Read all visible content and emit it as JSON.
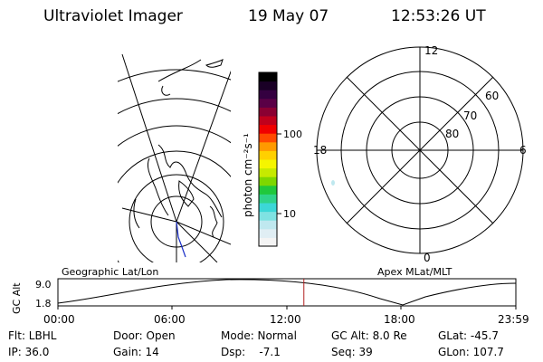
{
  "header": {
    "instrument": "Ultraviolet Imager",
    "date": "19 May 07",
    "time": "12:53:26 UT"
  },
  "colorbar": {
    "label": "photon cm⁻²s⁻¹",
    "tick_100": "100",
    "tick_10": "10",
    "colors": [
      "#f4f4f4",
      "#e0eef4",
      "#bfe8ef",
      "#7fe2e2",
      "#3cd7d7",
      "#2fd38a",
      "#20c83c",
      "#7ed700",
      "#c6ea00",
      "#f5f500",
      "#ffd000",
      "#ff9a00",
      "#ff4a00",
      "#f00000",
      "#c0001c",
      "#8a0032",
      "#5a0046",
      "#340040",
      "#1a0026",
      "#000000"
    ]
  },
  "polar_plot": {
    "mlt_12": "12",
    "mlt_18": "18",
    "mlt_6": "6",
    "mlt_0": "0",
    "lat_60": "60",
    "lat_70": "70",
    "lat_80": "80"
  },
  "map_labels": {
    "left": "Geographic Lat/Lon",
    "right": "Apex MLat/MLT"
  },
  "altitude_plot": {
    "ylabel": "GC Alt",
    "ytick_top": "9.0",
    "ytick_bottom": "1.8",
    "xticks": [
      "00:00",
      "06:00",
      "12:00",
      "18:00",
      "23:59"
    ],
    "current_time_hours": 12.89,
    "line_color": "#b22020"
  },
  "status": {
    "filter": "Flt: LBHL",
    "door": "Door: Open",
    "mode": "Mode: Normal",
    "gc_alt": "GC Alt: 8.0 Re",
    "glat": "GLat: -45.7",
    "ip": "IP: 36.0",
    "gain": "Gain: 14",
    "dsp": "Dsp:    -7.1",
    "seq": "Seq: 39",
    "glon": "GLon: 107.7"
  }
}
